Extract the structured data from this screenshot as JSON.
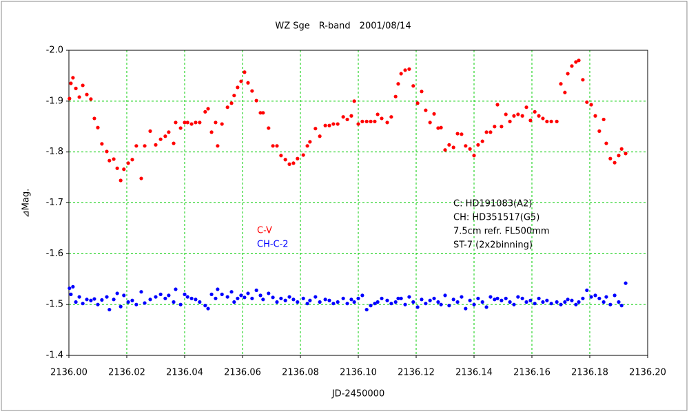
{
  "chart_data": {
    "type": "scatter",
    "title": "WZ Sge　R-band　2001/08/14",
    "xlabel": "JD-2450000",
    "ylabel": "⊿Mag.",
    "annotations": [
      "C: HD191083(A2)",
      "CH: HD351517(G5)",
      "7.5cm refr. FL500mm",
      "ST-7 (2x2binning)"
    ],
    "xlim": [
      2136,
      2136.2
    ],
    "xticks": [
      {
        "value": 2136,
        "label": "2136.00"
      },
      2136.02,
      2136.04,
      2136.06,
      2136.08,
      {
        "value": 2136.1,
        "label": "2136.10"
      },
      2136.12,
      2136.14,
      2136.16,
      2136.18,
      {
        "value": 2136.2,
        "label": "2136.20"
      }
    ],
    "ylim": [
      -1.4,
      -2.0
    ],
    "yticks": [
      {
        "value": -2.0,
        "label": "-2.0"
      },
      -1.9,
      -1.8,
      -1.7,
      -1.6,
      -1.5,
      -1.4
    ],
    "grid": true,
    "legend": "center",
    "x": [
      2136.0002,
      2136.0007,
      2136.0014,
      2136.0024,
      2136.0036,
      2136.0048,
      2136.0062,
      2136.0076,
      2136.0088,
      2136.01,
      2136.0114,
      2136.0131,
      2136.014,
      2136.0155,
      2136.0167,
      2136.0179,
      2136.019,
      2136.0205,
      2136.0219,
      2136.0233,
      2136.025,
      2136.0262,
      2136.0281,
      2136.03,
      2136.0317,
      2136.0333,
      2136.0345,
      2136.0362,
      2136.0369,
      2136.0386,
      2136.04,
      2136.041,
      2136.0424,
      2136.0438,
      2136.0452,
      2136.0471,
      2136.0481,
      2136.0493,
      2136.0507,
      2136.0514,
      2136.0529,
      2136.0548,
      2136.0562,
      2136.0571,
      2136.0583,
      2136.0595,
      2136.0607,
      2136.0619,
      2136.0633,
      2136.0648,
      2136.0662,
      2136.0671,
      2136.069,
      2136.0705,
      2136.0719,
      2136.0733,
      2136.0748,
      2136.0762,
      2136.0776,
      2136.079,
      2136.081,
      2136.0824,
      2136.0833,
      2136.0852,
      2136.0867,
      2136.0886,
      2136.09,
      2136.0914,
      2136.0929,
      2136.0948,
      2136.0962,
      2136.0976,
      2136.0986,
      2136.1,
      2136.1014,
      2136.1029,
      2136.1043,
      2136.1057,
      2136.1067,
      2136.1081,
      2136.11,
      2136.1114,
      2136.1129,
      2136.1138,
      2136.1148,
      2136.1162,
      2136.1176,
      2136.119,
      2136.1205,
      2136.1219,
      2136.1233,
      2136.1248,
      2136.1262,
      2136.1276,
      2136.1286,
      2136.13,
      2136.1314,
      2136.1329,
      2136.1343,
      2136.1357,
      2136.1371,
      2136.1386,
      2136.14,
      2136.1414,
      2136.1429,
      2136.1443,
      2136.1457,
      2136.1471,
      2136.1481,
      2136.1495,
      2136.151,
      2136.1524,
      2136.1538,
      2136.1552,
      2136.1567,
      2136.1581,
      2136.1595,
      2136.161,
      2136.1624,
      2136.1638,
      2136.1652,
      2136.1667,
      2136.1686,
      2136.17,
      2136.1714,
      2136.1724,
      2136.1738,
      2136.1752,
      2136.1762,
      2136.1776,
      2136.179,
      2136.1805,
      2136.1819,
      2136.1833,
      2136.1848,
      2136.1857,
      2136.1871,
      2136.1886,
      2136.19,
      2136.191,
      2136.1924
    ],
    "series": [
      {
        "name": "C-V",
        "color": "#ff0000",
        "values": [
          -1.905,
          -1.935,
          -1.946,
          -1.925,
          -1.908,
          -1.931,
          -1.913,
          -1.904,
          -1.866,
          -1.848,
          -1.816,
          -1.801,
          -1.783,
          -1.786,
          -1.768,
          -1.744,
          -1.766,
          -1.778,
          -1.785,
          -1.812,
          -1.748,
          -1.812,
          -1.841,
          -1.814,
          -1.825,
          -1.831,
          -1.839,
          -1.817,
          -1.858,
          -1.847,
          -1.858,
          -1.858,
          -1.855,
          -1.858,
          -1.858,
          -1.879,
          -1.885,
          -1.839,
          -1.858,
          -1.812,
          -1.855,
          -1.888,
          -1.896,
          -1.911,
          -1.927,
          -1.939,
          -1.957,
          -1.936,
          -1.92,
          -1.901,
          -1.877,
          -1.877,
          -1.847,
          -1.812,
          -1.812,
          -1.793,
          -1.785,
          -1.776,
          -1.778,
          -1.787,
          -1.794,
          -1.812,
          -1.82,
          -1.846,
          -1.831,
          -1.852,
          -1.852,
          -1.855,
          -1.855,
          -1.869,
          -1.864,
          -1.871,
          -1.9,
          -1.855,
          -1.86,
          -1.86,
          -1.86,
          -1.86,
          -1.874,
          -1.866,
          -1.858,
          -1.869,
          -1.909,
          -1.934,
          -1.954,
          -1.961,
          -1.963,
          -1.93,
          -1.896,
          -1.919,
          -1.882,
          -1.858,
          -1.875,
          -1.847,
          -1.848,
          -1.804,
          -1.814,
          -1.809,
          -1.836,
          -1.835,
          -1.812,
          -1.806,
          -1.793,
          -1.814,
          -1.821,
          -1.839,
          -1.839,
          -1.85,
          -1.893,
          -1.85,
          -1.874,
          -1.86,
          -1.871,
          -1.874,
          -1.871,
          -1.888,
          -1.862,
          -1.879,
          -1.871,
          -1.866,
          -1.86,
          -1.86,
          -1.86,
          -1.934,
          -1.917,
          -1.954,
          -1.969,
          -1.977,
          -1.98,
          -1.942,
          -1.898,
          -1.893,
          -1.871,
          -1.841,
          -1.864,
          -1.817,
          -1.787,
          -1.779,
          -1.793,
          -1.806,
          -1.797
        ]
      },
      {
        "name": "CH-C-2",
        "color": "#0000ff",
        "values": [
          -1.532,
          -1.52,
          -1.535,
          -1.505,
          -1.515,
          -1.502,
          -1.51,
          -1.508,
          -1.511,
          -1.5,
          -1.509,
          -1.515,
          -1.49,
          -1.51,
          -1.522,
          -1.496,
          -1.518,
          -1.505,
          -1.508,
          -1.5,
          -1.525,
          -1.503,
          -1.51,
          -1.515,
          -1.52,
          -1.512,
          -1.518,
          -1.505,
          -1.53,
          -1.5,
          -1.52,
          -1.515,
          -1.512,
          -1.51,
          -1.505,
          -1.498,
          -1.492,
          -1.52,
          -1.512,
          -1.53,
          -1.52,
          -1.515,
          -1.525,
          -1.505,
          -1.512,
          -1.518,
          -1.514,
          -1.522,
          -1.512,
          -1.528,
          -1.518,
          -1.51,
          -1.522,
          -1.514,
          -1.505,
          -1.512,
          -1.508,
          -1.515,
          -1.51,
          -1.505,
          -1.512,
          -1.502,
          -1.508,
          -1.515,
          -1.505,
          -1.51,
          -1.508,
          -1.502,
          -1.505,
          -1.512,
          -1.502,
          -1.51,
          -1.505,
          -1.512,
          -1.518,
          -1.49,
          -1.498,
          -1.502,
          -1.505,
          -1.512,
          -1.508,
          -1.502,
          -1.505,
          -1.512,
          -1.512,
          -1.5,
          -1.515,
          -1.505,
          -1.495,
          -1.51,
          -1.502,
          -1.508,
          -1.512,
          -1.505,
          -1.5,
          -1.518,
          -1.498,
          -1.51,
          -1.505,
          -1.515,
          -1.492,
          -1.508,
          -1.5,
          -1.512,
          -1.505,
          -1.495,
          -1.515,
          -1.51,
          -1.512,
          -1.508,
          -1.512,
          -1.505,
          -1.5,
          -1.515,
          -1.512,
          -1.505,
          -1.508,
          -1.502,
          -1.512,
          -1.505,
          -1.508,
          -1.502,
          -1.505,
          -1.5,
          -1.505,
          -1.51,
          -1.508,
          -1.5,
          -1.505,
          -1.512,
          -1.528,
          -1.515,
          -1.518,
          -1.512,
          -1.505,
          -1.515,
          -1.5,
          -1.518,
          -1.505,
          -1.498,
          -1.542
        ]
      }
    ]
  }
}
